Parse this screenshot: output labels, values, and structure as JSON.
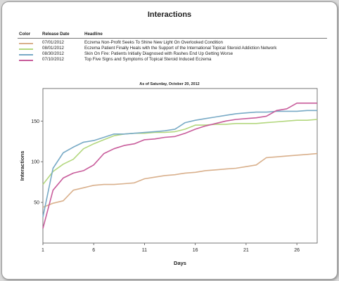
{
  "title": "Interactions",
  "legend": {
    "col_color": "Color",
    "col_date": "Release Date",
    "col_headline": "Headline",
    "entries": [
      {
        "date": "07/01/2012",
        "headline": "Eczema Non-Profit Seeks To Shine New Light On Overlooked Condition",
        "color": "#d9b08c"
      },
      {
        "date": "08/01/2012",
        "headline": "Eczema Patient Finally Heals with the Support of the International Topical Steroid Addiction Network",
        "color": "#b3d77e"
      },
      {
        "date": "08/30/2012",
        "headline": "Skin On Fire: Patients Initially Diagnosed with Rashes End Up Getting Worse",
        "color": "#78aac6"
      },
      {
        "date": "07/10/2012",
        "headline": "Top Five Signs and Symptoms of Topical Steroid Induced Eczema",
        "color": "#c85c9b"
      }
    ]
  },
  "chart_data": {
    "type": "line",
    "title": "As of Saturday, October 20, 2012",
    "xlabel": "Days",
    "ylabel": "Interactions",
    "xlim": [
      1,
      28
    ],
    "ylim": [
      0,
      190
    ],
    "xticks": [
      1,
      6,
      11,
      16,
      21,
      26
    ],
    "yticks": [
      50,
      100,
      150
    ],
    "grid": false,
    "x": [
      1,
      2,
      3,
      4,
      5,
      6,
      7,
      8,
      9,
      10,
      11,
      12,
      13,
      14,
      15,
      16,
      17,
      18,
      19,
      20,
      21,
      22,
      23,
      24,
      25,
      26,
      27,
      28
    ],
    "series": [
      {
        "name": "Eczema Non-Profit Seeks To Shine New Light On Overlooked Condition",
        "color": "#d9b08c",
        "values": [
          44,
          49,
          52,
          65,
          68,
          71,
          72,
          72,
          73,
          74,
          79,
          81,
          83,
          84,
          86,
          87,
          89,
          90,
          91,
          92,
          94,
          96,
          105,
          106,
          107,
          108,
          109,
          110
        ]
      },
      {
        "name": "Eczema Patient Finally Heals with the Support of the International Topical Steroid Addiction Network",
        "color": "#b3d77e",
        "values": [
          72,
          88,
          97,
          103,
          116,
          122,
          127,
          132,
          134,
          135,
          135,
          136,
          136,
          137,
          140,
          145,
          145,
          146,
          146,
          147,
          147,
          147,
          148,
          149,
          150,
          151,
          151,
          152
        ]
      },
      {
        "name": "Skin On Fire: Patients Initially Diagnosed with Rashes End Up Getting Worse",
        "color": "#78aac6",
        "values": [
          32,
          92,
          111,
          118,
          124,
          126,
          130,
          134,
          134,
          135,
          136,
          137,
          138,
          140,
          148,
          151,
          153,
          155,
          157,
          159,
          160,
          161,
          161,
          162,
          162,
          162,
          163,
          163
        ]
      },
      {
        "name": "Top Five Signs and Symptoms of Topical Steroid Induced Eczema",
        "color": "#c85c9b",
        "values": [
          18,
          65,
          80,
          86,
          89,
          96,
          110,
          116,
          120,
          122,
          127,
          128,
          130,
          131,
          135,
          140,
          144,
          147,
          150,
          152,
          153,
          154,
          156,
          163,
          165,
          172,
          172,
          172
        ]
      }
    ]
  }
}
